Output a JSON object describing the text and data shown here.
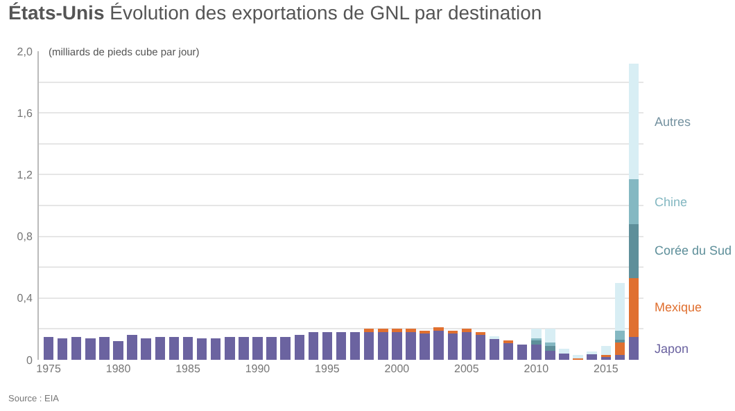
{
  "chart_data": {
    "type": "bar",
    "stacked": true,
    "title": "États-Unis",
    "subtitle": "Évolution des exportations de GNL par destination",
    "ylabel": "(milliards de pieds cube par jour)",
    "annotations": [
      "Source : EIA"
    ],
    "x": [
      1975,
      1976,
      1977,
      1978,
      1979,
      1980,
      1981,
      1982,
      1983,
      1984,
      1985,
      1986,
      1987,
      1988,
      1989,
      1990,
      1991,
      1992,
      1993,
      1994,
      1995,
      1996,
      1997,
      1998,
      1999,
      2000,
      2001,
      2002,
      2003,
      2004,
      2005,
      2006,
      2007,
      2008,
      2009,
      2010,
      2011,
      2012,
      2013,
      2014,
      2015,
      2016,
      2017
    ],
    "series": [
      {
        "name": "Japon",
        "color": "#6b63a0",
        "values": [
          0.15,
          0.14,
          0.15,
          0.14,
          0.15,
          0.12,
          0.16,
          0.14,
          0.15,
          0.15,
          0.15,
          0.14,
          0.14,
          0.15,
          0.15,
          0.15,
          0.15,
          0.15,
          0.16,
          0.18,
          0.18,
          0.18,
          0.18,
          0.18,
          0.18,
          0.18,
          0.18,
          0.17,
          0.19,
          0.17,
          0.18,
          0.17,
          0.14,
          0.11,
          0.1,
          0.1,
          0.06,
          0.04,
          0,
          0.04,
          0.02,
          0.03,
          0.15
        ]
      },
      {
        "name": "Mexique",
        "color": "#e07030",
        "values": [
          0,
          0,
          0,
          0,
          0,
          0,
          0,
          0,
          0,
          0,
          0,
          0,
          0,
          0,
          0,
          0,
          0,
          0,
          0,
          0,
          0,
          0,
          0,
          0.02,
          0.02,
          0.02,
          0.02,
          0.02,
          0.02,
          0.02,
          0.02,
          0.01,
          0,
          0.01,
          0,
          0,
          0,
          0,
          0.01,
          0,
          0.01,
          0.08,
          0.38
        ]
      },
      {
        "name": "Corée du Sud",
        "color": "#5e8f9a",
        "values": [
          0,
          0,
          0,
          0,
          0,
          0,
          0,
          0,
          0,
          0,
          0,
          0,
          0,
          0,
          0,
          0,
          0,
          0,
          0,
          0,
          0,
          0,
          0,
          0,
          0,
          0,
          0,
          0,
          0,
          0,
          0,
          0,
          0,
          0,
          0,
          0.03,
          0.03,
          0,
          0,
          0,
          0,
          0.02,
          0.35
        ]
      },
      {
        "name": "Chine",
        "color": "#84b8c2",
        "values": [
          0,
          0,
          0,
          0,
          0,
          0,
          0,
          0,
          0,
          0,
          0,
          0,
          0,
          0,
          0,
          0,
          0,
          0,
          0,
          0,
          0,
          0,
          0,
          0,
          0,
          0,
          0,
          0,
          0,
          0,
          0,
          0,
          0,
          0,
          0,
          0.01,
          0.02,
          0,
          0,
          0,
          0,
          0.06,
          0.29
        ]
      },
      {
        "name": "Autres",
        "color": "#d8eef4",
        "values": [
          0,
          0,
          0,
          0,
          0,
          0,
          0,
          0,
          0,
          0,
          0,
          0,
          0,
          0,
          0,
          0,
          0,
          0,
          0,
          0,
          0,
          0,
          0,
          0,
          0,
          0,
          0,
          0,
          0,
          0,
          0,
          0,
          0.01,
          0,
          0,
          0.06,
          0.09,
          0.03,
          0.02,
          0.01,
          0.06,
          0.31,
          0.75
        ]
      }
    ],
    "xlim": [
      1974.3,
      2017.7
    ],
    "xticks": [
      1975,
      1980,
      1985,
      1990,
      1995,
      2000,
      2005,
      2010,
      2015
    ],
    "ylim": [
      0,
      2.0
    ],
    "yticks": [
      0,
      {
        "value": 0.2,
        "label": null
      },
      {
        "value": 0.4,
        "label": "0,4"
      },
      {
        "value": 0.6,
        "label": null
      },
      {
        "value": 0.8,
        "label": "0,8"
      },
      {
        "value": 1.0,
        "label": null
      },
      {
        "value": 1.2,
        "label": "1,2"
      },
      {
        "value": 1.4,
        "label": null
      },
      {
        "value": 1.6,
        "label": "1,6"
      },
      {
        "value": 1.8,
        "label": null
      },
      {
        "value": 2.0,
        "label": "2,0"
      }
    ],
    "grid": "y",
    "legend": false
  }
}
